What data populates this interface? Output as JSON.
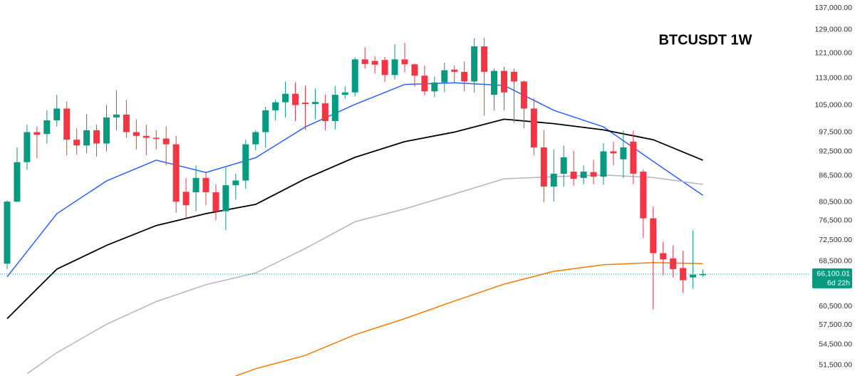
{
  "chart_data": {
    "type": "candlestick",
    "title": "BTCUSDT 1W",
    "log_scale": true,
    "up_color": "#089981",
    "down_color": "#f23645",
    "ylim": [
      50000,
      140000
    ],
    "yticks": [
      {
        "value": 137000,
        "label": "137,000.00"
      },
      {
        "value": 129000,
        "label": "129,000.00"
      },
      {
        "value": 121000,
        "label": "121,000.00"
      },
      {
        "value": 113000,
        "label": "113,000.00"
      },
      {
        "value": 105000,
        "label": "105,000.00"
      },
      {
        "value": 97500,
        "label": "97,500.00"
      },
      {
        "value": 92500,
        "label": "92,500.00"
      },
      {
        "value": 86500,
        "label": "86,500.00"
      },
      {
        "value": 80500,
        "label": "80,500.00"
      },
      {
        "value": 76500,
        "label": "76,500.00"
      },
      {
        "value": 72500,
        "label": "72,500.00"
      },
      {
        "value": 68500,
        "label": "68,500.00"
      },
      {
        "value": 60500,
        "label": "60,500.00"
      },
      {
        "value": 57500,
        "label": "57,500.00"
      },
      {
        "value": 54500,
        "label": "54,500.00"
      },
      {
        "value": 51500,
        "label": "51,500.00"
      }
    ],
    "open": [
      68000,
      80600,
      89800,
      97500,
      97000,
      100700,
      104000,
      95500,
      94000,
      98000,
      94500,
      101500,
      102300,
      97500,
      96500,
      96000,
      95800,
      94300,
      82800,
      82700,
      86000,
      82700,
      78500,
      84300,
      85400,
      94300,
      97500,
      103500,
      105800,
      108300,
      105700,
      105300,
      105500,
      100500,
      108000,
      108700,
      119000,
      118500,
      118800,
      114000,
      119000,
      117400,
      113800,
      109000,
      111700,
      115700,
      115000,
      112000,
      123300,
      108000,
      115300,
      115000,
      112000,
      104000,
      93500,
      84000,
      87000,
      87500,
      86000,
      87400,
      86300,
      92500,
      90500,
      95000,
      87500,
      77000,
      70000,
      69000,
      67200,
      65500,
      65900
    ],
    "high": [
      80900,
      93500,
      99500,
      99000,
      103500,
      108000,
      106000,
      98500,
      102500,
      99500,
      105000,
      109300,
      106500,
      101000,
      99500,
      98000,
      99000,
      96500,
      86000,
      89000,
      87500,
      84500,
      88500,
      87000,
      95500,
      98000,
      104500,
      106500,
      112000,
      111800,
      110700,
      109800,
      108000,
      110600,
      110500,
      119700,
      123000,
      120000,
      119800,
      124000,
      124500,
      117600,
      117000,
      113500,
      117900,
      117000,
      118300,
      126100,
      126200,
      116000,
      116500,
      116000,
      112300,
      107000,
      98000,
      93000,
      94000,
      92700,
      89000,
      90400,
      94600,
      95000,
      97900,
      97900,
      88000,
      79500,
      72200,
      71500,
      70500,
      74500,
      66900
    ],
    "low": [
      67000,
      80500,
      88000,
      90800,
      94500,
      99000,
      91500,
      91700,
      92000,
      91200,
      92500,
      98000,
      96000,
      93000,
      91500,
      93000,
      89000,
      78200,
      77000,
      78500,
      79800,
      76600,
      74500,
      81000,
      83500,
      92800,
      93500,
      100700,
      101500,
      100500,
      98200,
      101000,
      98000,
      98200,
      106800,
      107500,
      116000,
      114500,
      111900,
      112600,
      114800,
      110400,
      107800,
      107300,
      108800,
      111500,
      109000,
      108700,
      102000,
      103500,
      103500,
      100000,
      98500,
      91500,
      80500,
      80600,
      84000,
      84200,
      84500,
      84500,
      84400,
      89000,
      86000,
      84500,
      73000,
      60000,
      65800,
      65500,
      62800,
      63500,
      65600
    ],
    "close": [
      80600,
      89800,
      97500,
      96800,
      100700,
      104000,
      95500,
      94000,
      98000,
      94500,
      101500,
      102300,
      97500,
      96500,
      96000,
      95700,
      94300,
      80600,
      79800,
      86000,
      82700,
      78500,
      84300,
      85400,
      94300,
      97500,
      103500,
      105800,
      108300,
      105000,
      105300,
      105900,
      100500,
      108000,
      108700,
      119000,
      117500,
      117300,
      114000,
      119000,
      117400,
      113800,
      109000,
      111700,
      115500,
      115000,
      112000,
      123300,
      115000,
      115300,
      108700,
      112000,
      104000,
      93500,
      84000,
      87000,
      91000,
      85800,
      87500,
      86300,
      92500,
      92000,
      93500,
      87000,
      77000,
      70000,
      68800,
      67000,
      65000,
      66000,
      66100.01
    ],
    "overlays": [
      {
        "color": "#2962ff",
        "x": [
          0,
          5,
          10,
          15,
          20,
          25,
          30,
          35,
          40,
          45,
          50,
          55,
          60,
          65,
          70
        ],
        "values": [
          65600,
          78000,
          85300,
          90300,
          87300,
          90900,
          98900,
          105200,
          111100,
          111600,
          110800,
          103500,
          98900,
          90000,
          82000
        ]
      },
      {
        "color": "#000000",
        "x": [
          0,
          5,
          10,
          15,
          20,
          25,
          30,
          35,
          40,
          45,
          50,
          55,
          60,
          65,
          70
        ],
        "values": [
          58500,
          67000,
          71500,
          75500,
          78000,
          80000,
          85800,
          91000,
          95000,
          97500,
          101000,
          99800,
          98100,
          95500,
          90300
        ]
      },
      {
        "color": "#b2b5be",
        "x": [
          2,
          5,
          10,
          15,
          20,
          25,
          30,
          35,
          40,
          45,
          50,
          55,
          60,
          65,
          70
        ],
        "values": [
          50300,
          53300,
          57600,
          61300,
          64200,
          66300,
          70900,
          76300,
          79000,
          82300,
          85800,
          86300,
          86700,
          86100,
          84500
        ]
      },
      {
        "color": "#f57c00",
        "x": [
          23,
          25,
          30,
          35,
          40,
          45,
          50,
          55,
          60,
          65,
          70
        ],
        "values": [
          50000,
          51000,
          52900,
          56000,
          58500,
          61400,
          64300,
          66600,
          67800,
          68200,
          68000
        ]
      }
    ],
    "last_price": {
      "value": 66100.01,
      "label": "66,100.01",
      "countdown": "6d 22h"
    }
  }
}
